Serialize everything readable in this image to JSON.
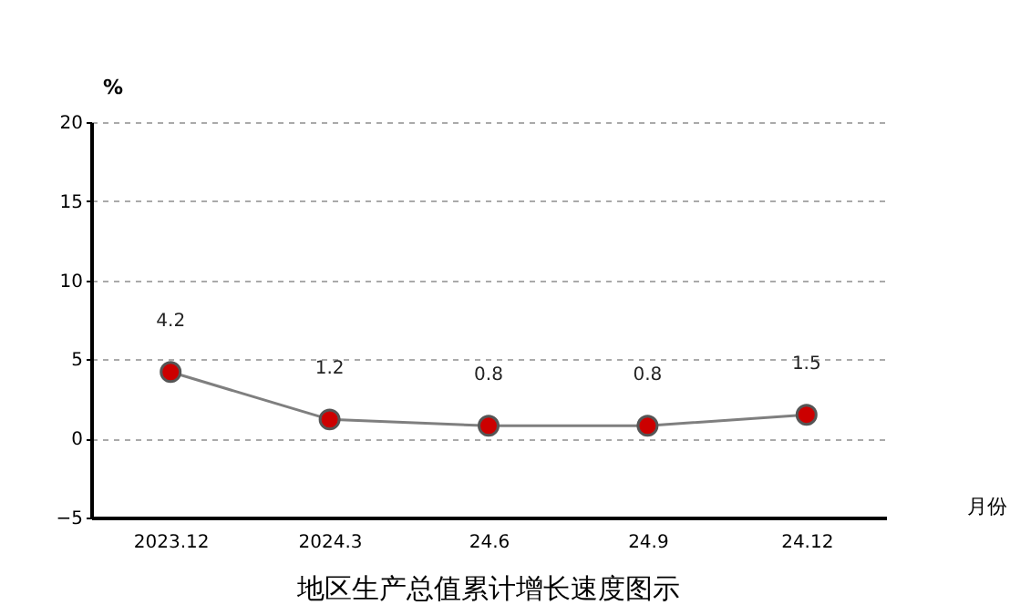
{
  "chart_data": {
    "type": "line",
    "title": "地区生产总值累计增长速度图示",
    "xlabel": "月份",
    "ylabel": "%",
    "categories": [
      "2023.12",
      "2024.3",
      "24.6",
      "24.9",
      "24.12"
    ],
    "series": [
      {
        "color": "#cc0000",
        "values": [
          4.2,
          1.2,
          0.8,
          0.8,
          1.5
        ]
      }
    ],
    "ylim": [
      -5,
      20
    ],
    "yticks": [
      -5,
      0,
      5,
      10,
      15,
      20
    ],
    "grid": "y",
    "data_labels": true,
    "marker": "circle",
    "line_style": "solid",
    "legend": false
  }
}
